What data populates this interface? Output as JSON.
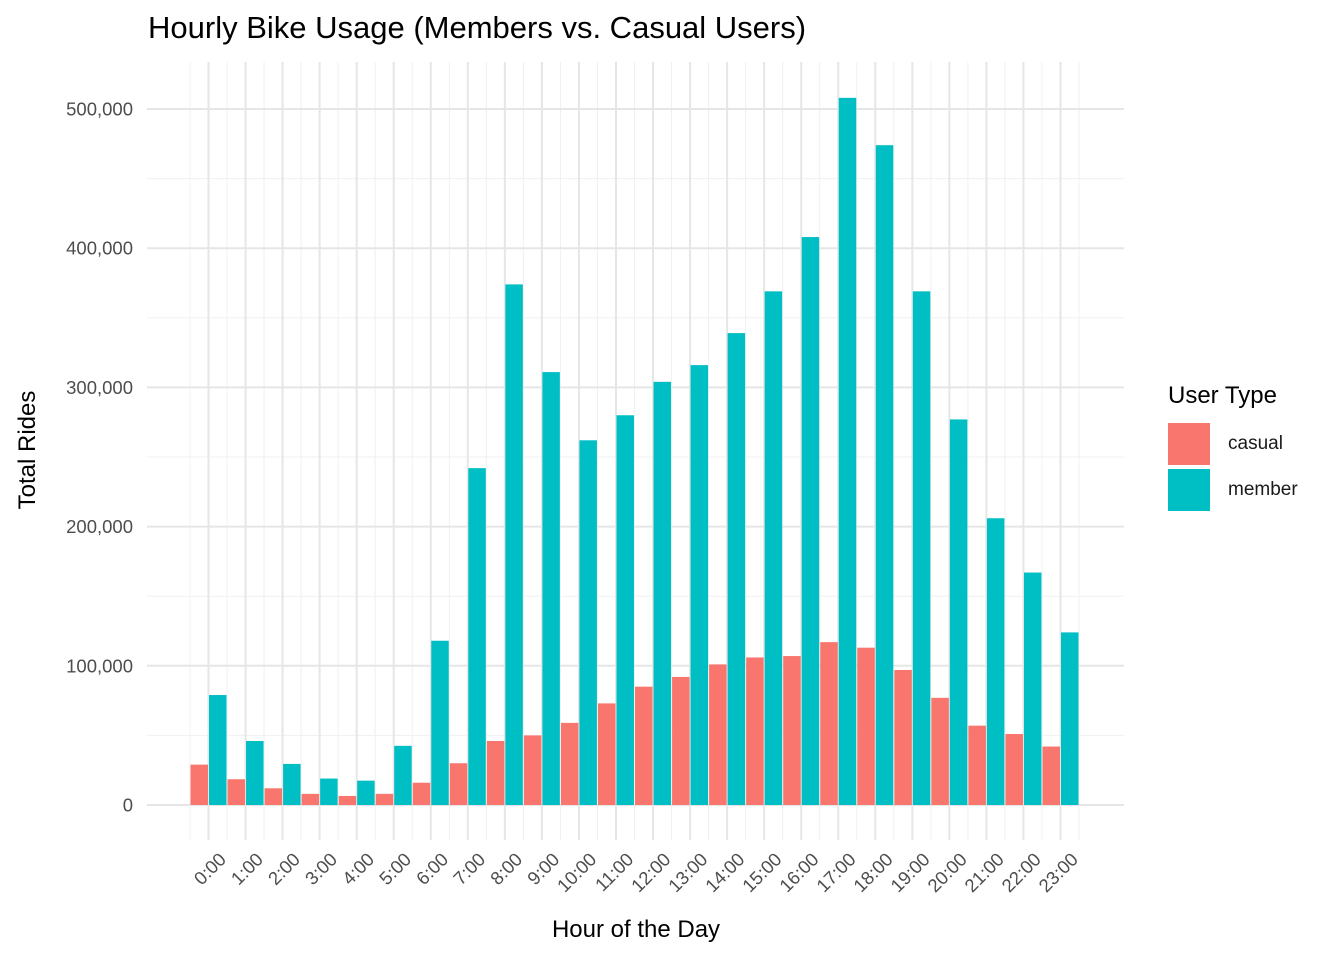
{
  "chart_data": {
    "type": "bar",
    "title": "Hourly Bike Usage (Members vs. Casual Users)",
    "xlabel": "Hour of the Day",
    "ylabel": "Total Rides",
    "categories": [
      "0:00",
      "1:00",
      "2:00",
      "3:00",
      "4:00",
      "5:00",
      "6:00",
      "7:00",
      "8:00",
      "9:00",
      "10:00",
      "11:00",
      "12:00",
      "13:00",
      "14:00",
      "15:00",
      "16:00",
      "17:00",
      "18:00",
      "19:00",
      "20:00",
      "21:00",
      "22:00",
      "23:00"
    ],
    "series": [
      {
        "name": "casual",
        "color": "#F8766D",
        "values": [
          29000,
          18500,
          12000,
          8000,
          6500,
          8000,
          16000,
          30000,
          46000,
          50000,
          59000,
          73000,
          85000,
          92000,
          101000,
          106000,
          107000,
          117000,
          113000,
          97000,
          77000,
          57000,
          51000,
          42000
        ]
      },
      {
        "name": "member",
        "color": "#00BFC4",
        "values": [
          79000,
          46000,
          29500,
          19000,
          17500,
          42500,
          118000,
          242000,
          374000,
          311000,
          262000,
          280000,
          304000,
          316000,
          339000,
          369000,
          408000,
          508000,
          474000,
          369000,
          277000,
          206000,
          167000,
          124000
        ]
      }
    ],
    "yticks": [
      0,
      100000,
      200000,
      300000,
      400000,
      500000
    ],
    "ytick_labels": [
      "0",
      "100,000",
      "200,000",
      "300,000",
      "400,000",
      "500,000"
    ],
    "ylim": [
      0,
      530000
    ],
    "grid": true,
    "legend": {
      "title": "User Type",
      "position": "right"
    }
  }
}
